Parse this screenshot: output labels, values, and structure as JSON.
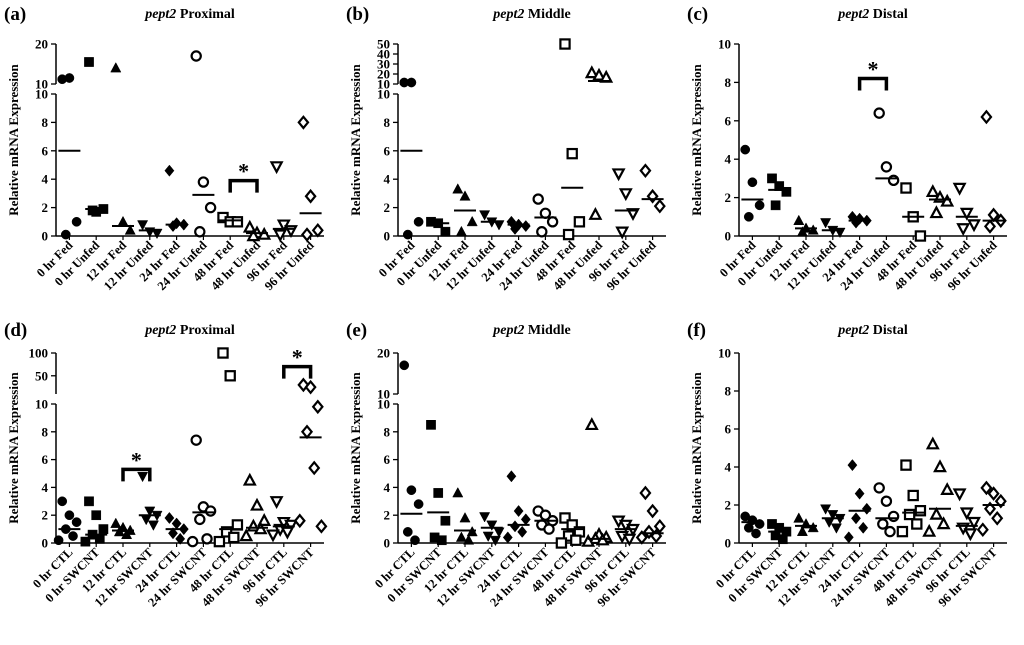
{
  "figure": {
    "ylabel": "Relative mRNA Expression",
    "fed_categories": [
      "0 hr Fed",
      "0 hr Unfed",
      "12 hr Fed",
      "12 hr Unfed",
      "24 hr Fed",
      "24 hr Unfed",
      "48 hr Fed",
      "48 hr Unfed",
      "96 hr Fed",
      "96 hr Unfed"
    ],
    "ctl_categories": [
      "0 hr CTL",
      "0 hr SWCNT",
      "12 hr CTL",
      "12 hr SWCNT",
      "24 hr CTL",
      "24 hr SWCNT",
      "48 hr CTL",
      "48 hr SWCNT",
      "96 hr CTL",
      "96 hr SWCNT"
    ],
    "marker_shapes": [
      "circle-filled",
      "square-filled",
      "triangle-filled",
      "triangle-down-filled",
      "diamond-filled",
      "circle-open",
      "square-open",
      "triangle-open",
      "triangle-down-open",
      "diamond-open"
    ]
  },
  "chart_data": [
    {
      "type": "scatter",
      "panel": "(a)",
      "gene": "pept2",
      "region": "Proximal",
      "categories_key": "fed",
      "ylabel": "Relative mRNA Expression",
      "broken_axis": true,
      "upper_ticks": [
        10,
        20
      ],
      "upper_range": [
        10,
        20
      ],
      "lower_ticks": [
        0,
        2,
        4,
        6,
        8,
        10
      ],
      "lower_range": [
        0,
        10
      ],
      "groups": [
        {
          "values": [
            11.2,
            11.5,
            1.0,
            0.1
          ],
          "mean": 6.0
        },
        {
          "values": [
            15.5,
            1.7,
            1.9,
            1.8
          ],
          "mean": 1.9
        },
        {
          "values": [
            14.0,
            1.0,
            0.4
          ],
          "mean": 0.7
        },
        {
          "values": [
            0.8,
            0.3,
            0.2
          ],
          "mean": 0.4
        },
        {
          "values": [
            4.6,
            0.9,
            0.8,
            0.7
          ],
          "mean": 0.8
        },
        {
          "values": [
            17.0,
            3.8,
            2.0,
            0.3
          ],
          "mean": 2.9
        },
        {
          "values": [
            1.3,
            1.0,
            1.0
          ],
          "mean": 1.1
        },
        {
          "values": [
            0.6,
            0.2,
            0.1,
            0.0
          ],
          "mean": 0.2
        },
        {
          "values": [
            4.9,
            0.8,
            0.4,
            0.1
          ],
          "mean": 0.5
        },
        {
          "values": [
            8.0,
            2.8,
            0.4,
            0.1
          ],
          "mean": 1.6
        }
      ],
      "significance": [
        {
          "pair": [
            6,
            7
          ],
          "label": "*",
          "bracket_y": 3.9
        }
      ]
    },
    {
      "type": "scatter",
      "panel": "(b)",
      "gene": "pept2",
      "region": "Middle",
      "categories_key": "fed",
      "ylabel": "Relative mRNA Expression",
      "broken_axis": true,
      "upper_ticks": [
        10,
        20,
        30,
        40,
        50
      ],
      "upper_range": [
        10,
        50
      ],
      "lower_ticks": [
        0,
        2,
        4,
        6,
        8,
        10
      ],
      "lower_range": [
        0,
        10
      ],
      "groups": [
        {
          "values": [
            11.5,
            11.5,
            1.0,
            0.1
          ],
          "mean": 6.0
        },
        {
          "values": [
            1.0,
            0.9,
            0.3
          ],
          "mean": 0.9
        },
        {
          "values": [
            3.3,
            2.8,
            1.0,
            0.3
          ],
          "mean": 1.8
        },
        {
          "values": [
            1.5,
            1.0,
            0.8
          ],
          "mean": 1.0
        },
        {
          "values": [
            1.0,
            0.8,
            0.7,
            0.5
          ],
          "mean": 0.8
        },
        {
          "values": [
            2.6,
            1.6,
            1.0,
            0.3
          ],
          "mean": 1.3
        },
        {
          "values": [
            50.0,
            5.8,
            1.0,
            0.1
          ],
          "mean": 3.4
        },
        {
          "values": [
            21.0,
            18.5,
            16.5,
            1.5
          ],
          "mean": 13.0
        },
        {
          "values": [
            4.4,
            3.0,
            1.6,
            0.3
          ],
          "mean": 1.8
        },
        {
          "values": [
            4.6,
            2.8,
            2.1
          ],
          "mean": 2.6
        }
      ],
      "significance": []
    },
    {
      "type": "scatter",
      "panel": "(c)",
      "gene": "pept2",
      "region": "Distal",
      "categories_key": "fed",
      "ylabel": "Relative mRNA Expression",
      "broken_axis": false,
      "lower_ticks": [
        0,
        2,
        4,
        6,
        8,
        10
      ],
      "lower_range": [
        0,
        10
      ],
      "groups": [
        {
          "values": [
            4.5,
            2.8,
            1.6,
            1.0
          ],
          "mean": 1.9
        },
        {
          "values": [
            3.0,
            2.6,
            2.3,
            1.6
          ],
          "mean": 2.4
        },
        {
          "values": [
            0.8,
            0.4,
            0.3,
            0.2
          ],
          "mean": 0.4
        },
        {
          "values": [
            0.7,
            0.3,
            0.2
          ],
          "mean": 0.3
        },
        {
          "values": [
            1.0,
            0.9,
            0.8,
            0.7
          ],
          "mean": 0.8
        },
        {
          "values": [
            6.4,
            3.6,
            2.9
          ],
          "mean": 3.0
        },
        {
          "values": [
            2.5,
            1.0,
            0.0
          ],
          "mean": 1.0
        },
        {
          "values": [
            2.3,
            2.0,
            1.8,
            1.2
          ],
          "mean": 1.9
        },
        {
          "values": [
            2.5,
            1.2,
            0.6,
            0.4
          ],
          "mean": 1.0
        },
        {
          "values": [
            6.2,
            1.1,
            0.8,
            0.5
          ],
          "mean": 0.8
        }
      ],
      "significance": [
        {
          "pair": [
            4,
            5
          ],
          "label": "*",
          "bracket_y": 8.2
        }
      ]
    },
    {
      "type": "scatter",
      "panel": "(d)",
      "gene": "pept2",
      "region": "Proximal",
      "categories_key": "ctl",
      "ylabel": "Relative mRNA Expression",
      "broken_axis": true,
      "upper_ticks": [
        50,
        100
      ],
      "upper_range": [
        10,
        100
      ],
      "lower_ticks": [
        0,
        2,
        4,
        6,
        8,
        10
      ],
      "lower_range": [
        0,
        10
      ],
      "groups": [
        {
          "values": [
            3.0,
            2.0,
            1.5,
            1.0,
            0.5,
            0.2
          ],
          "mean": 1.0
        },
        {
          "values": [
            3.0,
            2.0,
            1.0,
            0.6,
            0.3,
            0.1
          ],
          "mean": 0.6
        },
        {
          "values": [
            1.4,
            1.1,
            0.9,
            0.8,
            0.6
          ],
          "mean": 0.9
        },
        {
          "values": [
            4.8,
            2.3,
            2.0,
            1.7,
            1.3
          ],
          "mean": 2.0
        },
        {
          "values": [
            1.8,
            1.4,
            1.0,
            0.7,
            0.3
          ],
          "mean": 1.0
        },
        {
          "values": [
            7.4,
            2.6,
            2.3,
            1.7,
            0.3,
            0.1
          ],
          "mean": 2.2
        },
        {
          "values": [
            100.0,
            50.0,
            1.3,
            0.8,
            0.4,
            0.1
          ],
          "mean": 1.0
        },
        {
          "values": [
            4.5,
            2.7,
            1.6,
            1.2,
            1.0,
            0.5
          ],
          "mean": 1.1
        },
        {
          "values": [
            3.0,
            1.5,
            1.3,
            1.0,
            0.8,
            0.6
          ],
          "mean": 1.2
        },
        {
          "values": [
            30.0,
            25.0,
            9.8,
            8.0,
            5.4,
            1.6,
            1.2
          ],
          "mean": 7.6
        }
      ],
      "significance": [
        {
          "pair": [
            2,
            3
          ],
          "label": "*",
          "bracket_y": 5.3
        },
        {
          "pair": [
            8,
            9
          ],
          "label": "*",
          "bracket_y": 70.0
        }
      ]
    },
    {
      "type": "scatter",
      "panel": "(e)",
      "gene": "pept2",
      "region": "Middle",
      "categories_key": "ctl",
      "ylabel": "Relative mRNA Expression",
      "broken_axis": true,
      "upper_ticks": [
        10,
        20
      ],
      "upper_range": [
        10,
        20
      ],
      "lower_ticks": [
        0,
        2,
        4,
        6,
        8,
        10
      ],
      "lower_range": [
        0,
        10
      ],
      "groups": [
        {
          "values": [
            17.0,
            3.8,
            2.8,
            0.8,
            0.2
          ],
          "mean": 2.1
        },
        {
          "values": [
            8.5,
            3.6,
            1.6,
            0.4,
            0.2
          ],
          "mean": 2.2
        },
        {
          "values": [
            3.6,
            1.8,
            0.8,
            0.4,
            0.2
          ],
          "mean": 0.9
        },
        {
          "values": [
            1.9,
            1.3,
            0.8,
            0.5,
            0.2
          ],
          "mean": 1.1
        },
        {
          "values": [
            4.8,
            2.3,
            1.7,
            1.2,
            0.8,
            0.4
          ],
          "mean": 1.3
        },
        {
          "values": [
            2.3,
            2.0,
            1.6,
            1.3,
            1.0
          ],
          "mean": 1.6
        },
        {
          "values": [
            1.8,
            1.3,
            0.8,
            0.5,
            0.2,
            0.0
          ],
          "mean": 1.0
        },
        {
          "values": [
            8.5,
            0.6,
            0.4,
            0.3,
            0.2,
            0.1
          ],
          "mean": 0.3
        },
        {
          "values": [
            1.6,
            1.3,
            1.0,
            0.5,
            0.3
          ],
          "mean": 1.0
        },
        {
          "values": [
            3.6,
            2.3,
            1.2,
            0.8,
            0.5,
            0.4
          ],
          "mean": 0.7
        }
      ],
      "significance": []
    },
    {
      "type": "scatter",
      "panel": "(f)",
      "gene": "pept2",
      "region": "Distal",
      "categories_key": "ctl",
      "ylabel": "Relative mRNA Expression",
      "broken_axis": false,
      "lower_ticks": [
        0,
        2,
        4,
        6,
        8,
        10
      ],
      "lower_range": [
        0,
        10
      ],
      "groups": [
        {
          "values": [
            1.4,
            1.2,
            1.0,
            0.8,
            0.5
          ],
          "mean": 1.1
        },
        {
          "values": [
            1.0,
            0.8,
            0.6,
            0.4,
            0.2
          ],
          "mean": 0.6
        },
        {
          "values": [
            1.3,
            1.0,
            0.8,
            0.6
          ],
          "mean": 0.9
        },
        {
          "values": [
            1.8,
            1.5,
            1.3,
            1.1,
            0.8
          ],
          "mean": 1.3
        },
        {
          "values": [
            4.1,
            2.6,
            1.8,
            1.3,
            0.8,
            0.3
          ],
          "mean": 1.7
        },
        {
          "values": [
            2.9,
            2.2,
            1.4,
            1.0,
            0.6
          ],
          "mean": 1.3
        },
        {
          "values": [
            4.1,
            2.5,
            1.7,
            1.5,
            1.0,
            0.6
          ],
          "mean": 1.6
        },
        {
          "values": [
            5.2,
            4.0,
            2.8,
            1.5,
            1.0,
            0.6
          ],
          "mean": 1.8
        },
        {
          "values": [
            2.6,
            1.6,
            1.1,
            0.8,
            0.5
          ],
          "mean": 0.9
        },
        {
          "values": [
            2.9,
            2.6,
            2.2,
            1.8,
            1.3,
            0.7
          ],
          "mean": 2.0
        }
      ],
      "significance": []
    }
  ]
}
